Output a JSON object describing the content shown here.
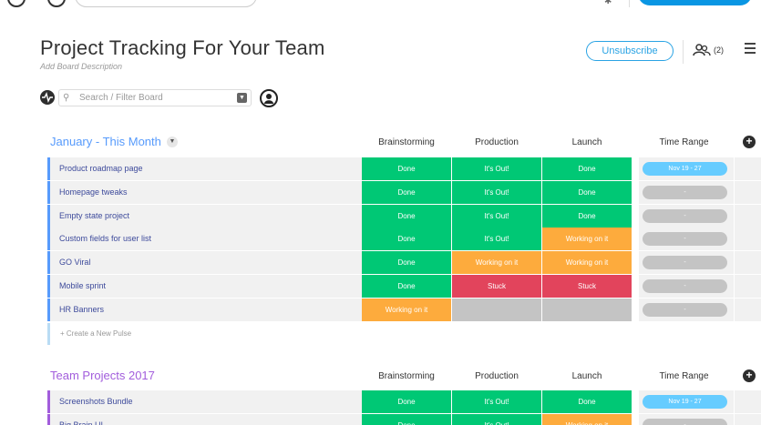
{
  "header": {
    "board_title": "Project Tracking For Your Team",
    "board_description": "Add Board Description",
    "unsubscribe_label": "Unsubscribe",
    "members_count": "(2)"
  },
  "toolbar": {
    "search_placeholder": "Search / Filter Board"
  },
  "colors": {
    "done": "#00c875",
    "working": "#fdab3d",
    "stuck": "#e2445c",
    "empty": "#c4c4c4",
    "timeline_active": "#66ccff",
    "group1": "#579bfc",
    "group2": "#a25ddc"
  },
  "groups": [
    {
      "title": "January - This Month",
      "columns": [
        "Brainstorming",
        "Production",
        "Launch",
        "Time Range"
      ],
      "rows": [
        {
          "name": "Product roadmap page",
          "brainstorming": "Done",
          "production": "It's Out!",
          "launch": "Done",
          "time_range": "Nov 19 - 27"
        },
        {
          "name": "Homepage tweaks",
          "brainstorming": "Done",
          "production": "It's Out!",
          "launch": "Done",
          "time_range": "-"
        },
        {
          "name": "Empty state project",
          "brainstorming": "Done",
          "production": "It's Out!",
          "launch": "Done",
          "time_range": "-"
        },
        {
          "name": "Custom fields for user list",
          "brainstorming": "Done",
          "production": "It's Out!",
          "launch": "Working on it",
          "time_range": "-"
        },
        {
          "name": "GO Viral",
          "brainstorming": "Done",
          "production": "Working on it",
          "launch": "Working on it",
          "time_range": "-"
        },
        {
          "name": "Mobile sprint",
          "brainstorming": "Done",
          "production": "Stuck",
          "launch": "Stuck",
          "time_range": "-"
        },
        {
          "name": "HR Banners",
          "brainstorming": "Working on it",
          "production": "",
          "launch": "",
          "time_range": "-"
        }
      ],
      "create_label": "+ Create a New Pulse"
    },
    {
      "title": "Team Projects 2017",
      "columns": [
        "Brainstorming",
        "Production",
        "Launch",
        "Time Range"
      ],
      "rows": [
        {
          "name": "Screenshots Bundle",
          "brainstorming": "Done",
          "production": "It's Out!",
          "launch": "Done",
          "time_range": "Nov 19 - 27"
        },
        {
          "name": "Big Brain UI",
          "brainstorming": "Done",
          "production": "It's Out!",
          "launch": "Working on it",
          "time_range": "-"
        }
      ]
    }
  ]
}
